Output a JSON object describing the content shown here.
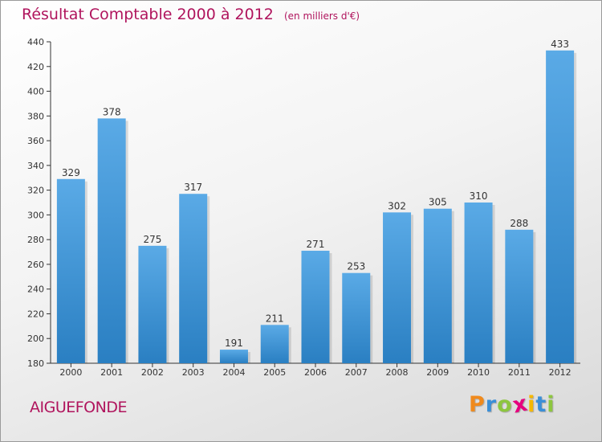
{
  "title": "Résultat Comptable 2000 à 2012",
  "unit_note": "(en milliers d'€)",
  "commune": "AIGUEFONDE",
  "logo": {
    "text": "Proxiti",
    "letters": [
      "P",
      "r",
      "o",
      "x",
      "i",
      "t",
      "i"
    ],
    "letter_colors": [
      "#f08a1c",
      "#3a8fd8",
      "#8dc63f",
      "#e6007e",
      "#f5b800",
      "#3a8fd8",
      "#8dc63f"
    ]
  },
  "colors": {
    "title": "#b0145d",
    "bar_top": "#5aaae6",
    "bar_bottom": "#2a7fc2",
    "axis": "#333333"
  },
  "chart_data": {
    "type": "bar",
    "categories": [
      "2000",
      "2001",
      "2002",
      "2003",
      "2004",
      "2005",
      "2006",
      "2007",
      "2008",
      "2009",
      "2010",
      "2011",
      "2012"
    ],
    "values": [
      329,
      378,
      275,
      317,
      191,
      211,
      271,
      253,
      302,
      305,
      310,
      288,
      433
    ],
    "ylim": [
      180,
      440
    ],
    "yticks": [
      180,
      200,
      220,
      240,
      260,
      280,
      300,
      320,
      340,
      360,
      380,
      400,
      420,
      440
    ],
    "grid": false,
    "data_labels": true
  }
}
